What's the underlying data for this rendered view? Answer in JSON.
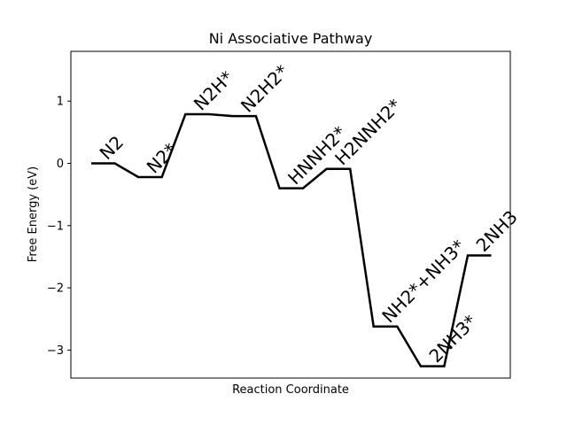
{
  "chart_data": {
    "type": "line",
    "title": "Ni Associative Pathway",
    "xlabel": "Reaction Coordinate",
    "ylabel": "Free Energy (eV)",
    "ylim": [
      -3.45,
      1.8
    ],
    "yticks": [
      1,
      0,
      -1,
      -2,
      -3
    ],
    "ytick_labels": [
      "1",
      "0",
      "−1",
      "−2",
      "−3"
    ],
    "xticks_visible": false,
    "grid": false,
    "legend": "none",
    "line_color": "#000000",
    "states": [
      {
        "label": "N2",
        "energy": 0.0
      },
      {
        "label": "N2*",
        "energy": -0.22
      },
      {
        "label": "N2H*",
        "energy": 0.79
      },
      {
        "label": "N2H2*",
        "energy": 0.76
      },
      {
        "label": "HNNH2*",
        "energy": -0.4
      },
      {
        "label": "H2NNH2*",
        "energy": -0.09
      },
      {
        "label": "NH2*+NH3*",
        "energy": -2.62
      },
      {
        "label": "2NH3*",
        "energy": -3.26
      },
      {
        "label": "2NH3",
        "energy": -1.48
      }
    ]
  }
}
